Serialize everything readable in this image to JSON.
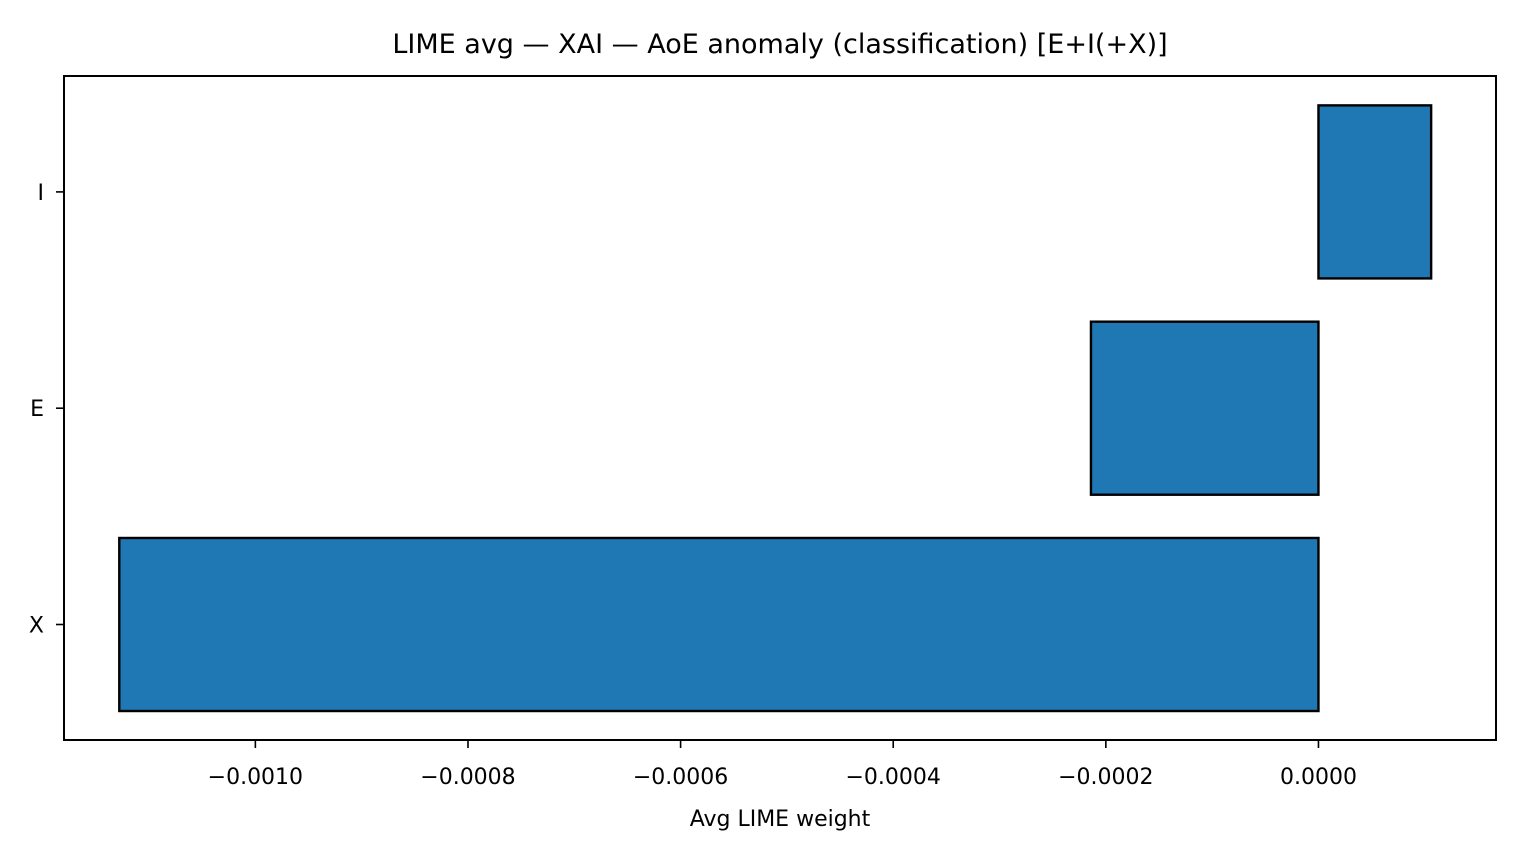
{
  "chart_data": {
    "type": "bar",
    "orientation": "horizontal",
    "title": "LIME avg — XAI — AoE anomaly (classification) [E+I(+X)]",
    "xlabel": "Avg LIME weight",
    "ylabel": "",
    "categories": [
      "X",
      "E",
      "I"
    ],
    "values": [
      -0.001128,
      -0.000214,
      0.000106
    ],
    "xlim": [
      -0.00118,
      0.000167
    ],
    "xticks": [
      -0.001,
      -0.0008,
      -0.0006,
      -0.0004,
      -0.0002,
      0.0
    ],
    "xtick_labels": [
      "−0.0010",
      "−0.0008",
      "−0.0006",
      "−0.0004",
      "−0.0002",
      "0.0000"
    ],
    "grid": false,
    "legend": "none",
    "bar_color": "#1f77b4",
    "edge_color": "#000000"
  }
}
